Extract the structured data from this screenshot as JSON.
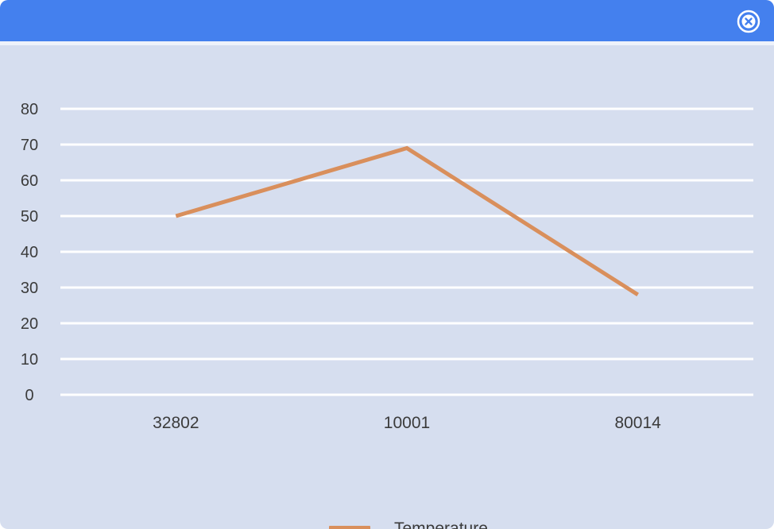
{
  "window": {
    "close_icon": "close-circle-icon",
    "colors": {
      "titlebar": "#4480ee",
      "background": "#d6deef",
      "grid": "#ffffff",
      "series": "#d98f5c"
    }
  },
  "chart_data": {
    "type": "line",
    "categories": [
      "32802",
      "10001",
      "80014"
    ],
    "series": [
      {
        "name": "Temperature",
        "values": [
          50,
          69,
          28
        ],
        "color": "#d98f5c"
      }
    ],
    "ylim": [
      0,
      80
    ],
    "yticks": [
      0,
      10,
      20,
      30,
      40,
      50,
      60,
      70,
      80
    ],
    "grid": true,
    "legend": "bottom-center"
  }
}
